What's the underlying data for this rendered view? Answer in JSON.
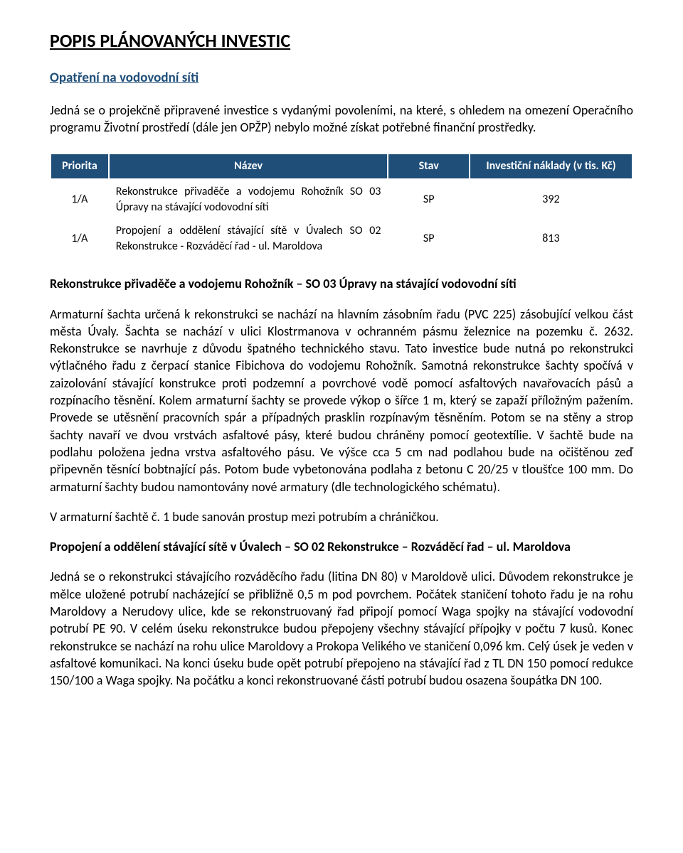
{
  "colors": {
    "heading_blue": "#1f4e79",
    "table_header_bg": "#1f4e79",
    "table_header_text": "#ffffff",
    "body_text": "#000000",
    "background": "#ffffff"
  },
  "typography": {
    "body_font_family": "Calibri",
    "body_font_size_pt": 13,
    "title_font_size_pt": 19,
    "line_height": 1.35
  },
  "title": "POPIS PLÁNOVANÝCH INVESTIC",
  "section1": {
    "subtitle": "Opatření na vodovodní síti",
    "intro": "Jedná se o projekčně připravené investice s vydanými povoleními, na které, s ohledem na omezení Operačního programu Životní prostředí (dále jen OPŽP) nebylo možné získat potřebné finanční prostředky."
  },
  "table": {
    "type": "table",
    "header_bg": "#1f4e79",
    "header_text_color": "#ffffff",
    "columns": [
      "Priorita",
      "Název",
      "Stav",
      "Investiční náklady (v tis. Kč)"
    ],
    "col_align": [
      "center",
      "justify",
      "center",
      "center"
    ],
    "rows": [
      {
        "priorita": "1/A",
        "nazev": "Rekonstrukce přivaděče a vodojemu Rohožník SO 03 Úpravy na stávající vodovodní síti",
        "stav": "SP",
        "naklady": "392"
      },
      {
        "priorita": "1/A",
        "nazev": "Propojení a oddělení stávající sítě v Úvalech SO 02 Rekonstrukce - Rozváděcí řad - ul. Maroldova",
        "stav": "SP",
        "naklady": "813"
      }
    ]
  },
  "body": {
    "heading1": "Rekonstrukce přivaděče a vodojemu Rohožník – SO 03 Úpravy na stávající vodovodní síti",
    "p1": "Armaturní šachta určená k rekonstrukci se nachází na hlavním zásobním řadu (PVC 225) zásobující velkou část města Úvaly. Šachta se nachází v ulici Klostrmanova v ochranném pásmu železnice na pozemku č. 2632. Rekonstrukce se navrhuje z důvodu špatného technického stavu. Tato investice bude nutná po rekonstrukci výtlačného řadu z čerpací stanice Fibichova do vodojemu Rohožník. Samotná rekonstrukce šachty spočívá v zaizolování stávající konstrukce proti podzemní a povrchové vodě pomocí asfaltových navařovacích pásů a rozpínacího těsnění. Kolem armaturní šachty se provede výkop o šířce 1 m, který se zapaží příložným pažením. Provede se utěsnění pracovních spár a případných prasklin rozpínavým těsněním. Potom se na stěny a strop šachty navaří ve dvou vrstvách asfaltové pásy, které budou chráněny pomocí geotextílie. V šachtě bude na podlahu položena jedna vrstva asfaltového pásu. Ve výšce cca 5 cm nad podlahou bude na očištěnou zeď připevněn těsnící bobtnající pás. Potom bude vybetonována podlaha z betonu C 20/25 v tloušťce 100 mm. Do armaturní šachty budou namontovány nové armatury (dle technologického schématu).",
    "p2": "V armaturní šachtě č. 1 bude sanován prostup mezi potrubím a chráničkou.",
    "heading2": "Propojení a oddělení stávající sítě v Úvalech – SO 02 Rekonstrukce – Rozváděcí řad – ul. Maroldova",
    "p3": "Jedná se o rekonstrukci stávajícího rozváděcího řadu (litina DN 80) v Maroldově ulici. Důvodem rekonstrukce je mělce uložené potrubí nacházející se přibližně 0,5 m pod povrchem. Počátek staničení tohoto řadu je na rohu Maroldovy a Nerudovy ulice, kde se rekonstruovaný řad připojí pomocí Waga spojky na stávající vodovodní potrubí PE 90. V celém úseku rekonstrukce budou přepojeny všechny stávající přípojky v počtu 7 kusů. Konec rekonstrukce se nachází na rohu ulice Maroldovy a Prokopa Velikého ve staničení 0,096 km. Celý úsek je veden v asfaltové komunikaci. Na konci úseku bude opět potrubí přepojeno na stávající řad z TL DN 150 pomocí redukce 150/100 a Waga spojky. Na počátku a konci rekonstruované části potrubí budou osazena šoupátka DN 100."
  }
}
